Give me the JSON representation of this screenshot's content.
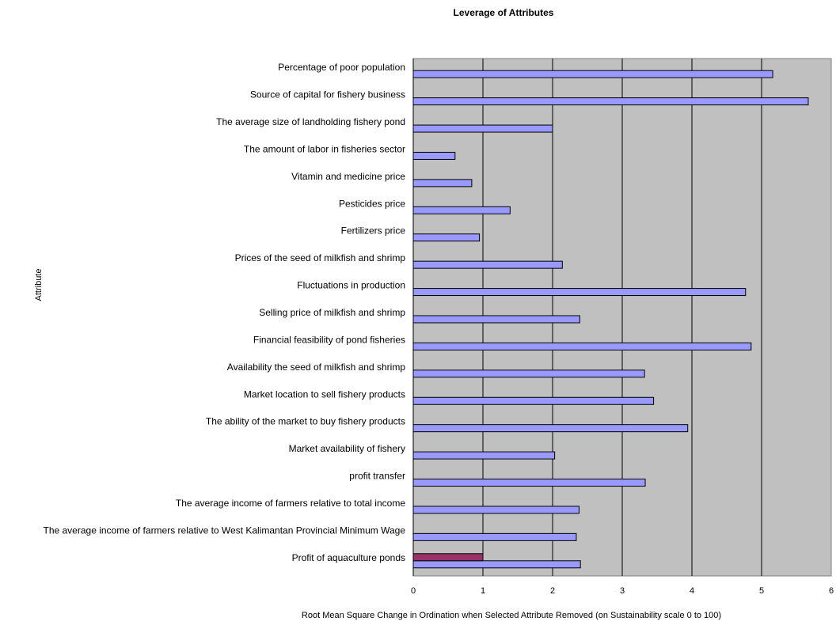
{
  "chart_data": {
    "type": "bar",
    "orientation": "horizontal",
    "title": "Leverage of Attributes",
    "xlabel": "Root Mean Square Change in Ordination when Selected Attribute Removed (on Sustainability scale 0 to 100)",
    "ylabel": "Attribute",
    "xlim": [
      0,
      6
    ],
    "xticks": [
      0,
      1,
      2,
      3,
      4,
      5,
      6
    ],
    "grid": "vertical",
    "plot_background": "#C0C0C0",
    "categories": [
      "Percentage of poor population",
      "Source of capital for fishery business",
      "The average size of landholding fishery pond",
      "The amount of labor in fisheries sector",
      "Vitamin and medicine price",
      "Pesticides price",
      "Fertilizers price",
      "Prices of the seed of milkfish and shrimp",
      "Fluctuations in production",
      "Selling price of milkfish and shrimp",
      "Financial feasibility of pond fisheries",
      "Availability the seed of milkfish and shrimp",
      "Market location to sell fishery products",
      "The ability of the market to buy fishery products",
      "Market availability of fishery",
      "profit transfer",
      "The average income of farmers relative to total income",
      "The average income of farmers relative to West Kalimantan Provincial Minimum Wage",
      "Profit of aquaculture ponds"
    ],
    "series": [
      {
        "color": "#9999FF",
        "values": [
          5.16,
          5.67,
          2.0,
          0.6,
          0.84,
          1.39,
          0.95,
          2.14,
          4.77,
          2.39,
          4.85,
          3.32,
          3.45,
          3.94,
          2.03,
          3.33,
          2.38,
          2.34,
          2.4
        ]
      },
      {
        "color": "#993366",
        "values": [
          null,
          null,
          null,
          null,
          null,
          null,
          null,
          null,
          null,
          null,
          null,
          null,
          null,
          null,
          null,
          null,
          null,
          null,
          1.0
        ]
      }
    ]
  }
}
